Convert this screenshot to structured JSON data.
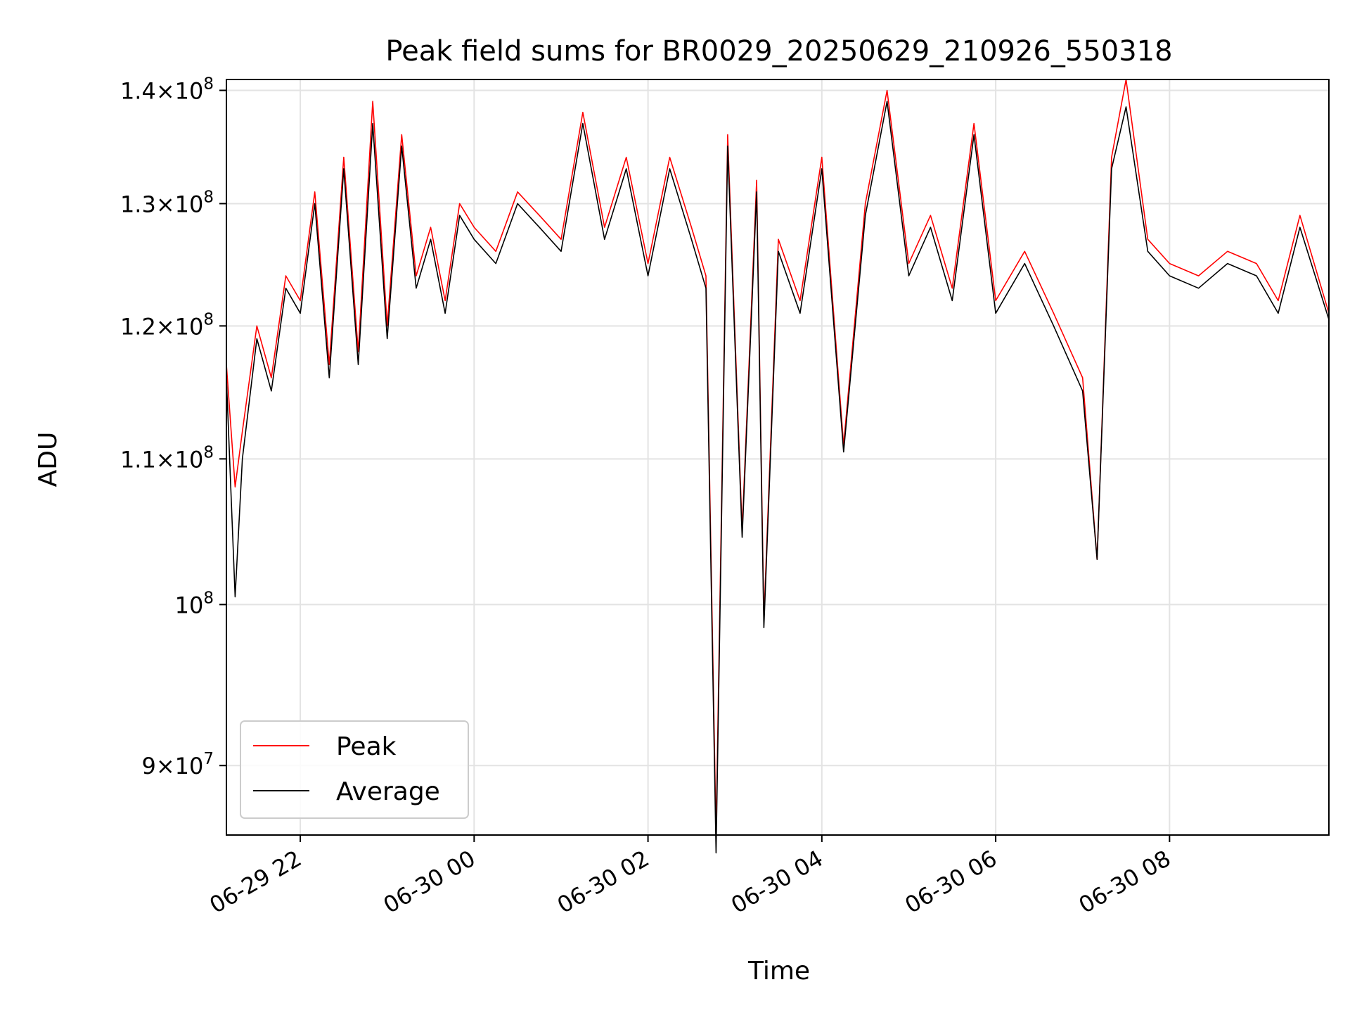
{
  "chart_data": {
    "type": "line",
    "title": "Peak field sums for BR0029_20250629_210926_550318",
    "xlabel": "Time",
    "ylabel": "ADU",
    "x_range": [
      "2025-06-29 21:09",
      "2025-06-30 09:50"
    ],
    "x_ticks": [
      {
        "value": "2025-06-29 22:00",
        "label": "06-29 22"
      },
      {
        "value": "2025-06-30 00:00",
        "label": "06-30 00"
      },
      {
        "value": "2025-06-30 02:00",
        "label": "06-30 02"
      },
      {
        "value": "2025-06-30 04:00",
        "label": "06-30 04"
      },
      {
        "value": "2025-06-30 06:00",
        "label": "06-30 06"
      },
      {
        "value": "2025-06-30 08:00",
        "label": "06-30 08"
      }
    ],
    "y_scale": "log",
    "ylim": [
      86000000,
      141000000
    ],
    "y_ticks": [
      {
        "value": 90000000,
        "mantissa": "9",
        "exponent": "7"
      },
      {
        "value": 100000000,
        "mantissa": "",
        "exponent": "8"
      },
      {
        "value": 110000000,
        "mantissa": "1.1",
        "exponent": "8"
      },
      {
        "value": 120000000,
        "mantissa": "1.2",
        "exponent": "8"
      },
      {
        "value": 130000000,
        "mantissa": "1.3",
        "exponent": "8"
      },
      {
        "value": 140000000,
        "mantissa": "1.4",
        "exponent": "8"
      }
    ],
    "grid": true,
    "legend_position": "lower-left",
    "series": [
      {
        "name": "Peak",
        "color": "#ff0000",
        "x": [
          "2025-06-29 21:09",
          "2025-06-29 21:15",
          "2025-06-29 21:20",
          "2025-06-29 21:30",
          "2025-06-29 21:40",
          "2025-06-29 21:50",
          "2025-06-29 22:00",
          "2025-06-29 22:10",
          "2025-06-29 22:20",
          "2025-06-29 22:30",
          "2025-06-29 22:40",
          "2025-06-29 22:50",
          "2025-06-29 23:00",
          "2025-06-29 23:10",
          "2025-06-29 23:20",
          "2025-06-29 23:30",
          "2025-06-29 23:40",
          "2025-06-29 23:50",
          "2025-06-30 00:00",
          "2025-06-30 00:15",
          "2025-06-30 00:30",
          "2025-06-30 00:45",
          "2025-06-30 01:00",
          "2025-06-30 01:15",
          "2025-06-30 01:30",
          "2025-06-30 01:45",
          "2025-06-30 02:00",
          "2025-06-30 02:15",
          "2025-06-30 02:30",
          "2025-06-30 02:40",
          "2025-06-30 02:47",
          "2025-06-30 02:55",
          "2025-06-30 03:05",
          "2025-06-30 03:15",
          "2025-06-30 03:20",
          "2025-06-30 03:30",
          "2025-06-30 03:45",
          "2025-06-30 04:00",
          "2025-06-30 04:15",
          "2025-06-30 04:30",
          "2025-06-30 04:45",
          "2025-06-30 05:00",
          "2025-06-30 05:15",
          "2025-06-30 05:30",
          "2025-06-30 05:45",
          "2025-06-30 06:00",
          "2025-06-30 06:20",
          "2025-06-30 06:40",
          "2025-06-30 07:00",
          "2025-06-30 07:10",
          "2025-06-30 07:20",
          "2025-06-30 07:30",
          "2025-06-30 07:45",
          "2025-06-30 08:00",
          "2025-06-30 08:20",
          "2025-06-30 08:40",
          "2025-06-30 09:00",
          "2025-06-30 09:15",
          "2025-06-30 09:30",
          "2025-06-30 09:50"
        ],
        "values": [
          117000000,
          108000000,
          112000000,
          120000000,
          116000000,
          124000000,
          122000000,
          131000000,
          117000000,
          134000000,
          118000000,
          139000000,
          120000000,
          136000000,
          124000000,
          128000000,
          122000000,
          130000000,
          128000000,
          126000000,
          131000000,
          129000000,
          127000000,
          138000000,
          128000000,
          134000000,
          125000000,
          134000000,
          128000000,
          124000000,
          86000000,
          136000000,
          105000000,
          132000000,
          99000000,
          127000000,
          122000000,
          134000000,
          111000000,
          130000000,
          140000000,
          125000000,
          129000000,
          123000000,
          137000000,
          122000000,
          126000000,
          121000000,
          116000000,
          103000000,
          134000000,
          141000000,
          127000000,
          125000000,
          124000000,
          126000000,
          125000000,
          122000000,
          129000000,
          121000000
        ]
      },
      {
        "name": "Average",
        "color": "#000000",
        "x": [
          "2025-06-29 21:09",
          "2025-06-29 21:15",
          "2025-06-29 21:20",
          "2025-06-29 21:30",
          "2025-06-29 21:40",
          "2025-06-29 21:50",
          "2025-06-29 22:00",
          "2025-06-29 22:10",
          "2025-06-29 22:20",
          "2025-06-29 22:30",
          "2025-06-29 22:40",
          "2025-06-29 22:50",
          "2025-06-29 23:00",
          "2025-06-29 23:10",
          "2025-06-29 23:20",
          "2025-06-29 23:30",
          "2025-06-29 23:40",
          "2025-06-29 23:50",
          "2025-06-30 00:00",
          "2025-06-30 00:15",
          "2025-06-30 00:30",
          "2025-06-30 00:45",
          "2025-06-30 01:00",
          "2025-06-30 01:15",
          "2025-06-30 01:30",
          "2025-06-30 01:45",
          "2025-06-30 02:00",
          "2025-06-30 02:15",
          "2025-06-30 02:30",
          "2025-06-30 02:40",
          "2025-06-30 02:47",
          "2025-06-30 02:55",
          "2025-06-30 03:05",
          "2025-06-30 03:15",
          "2025-06-30 03:20",
          "2025-06-30 03:30",
          "2025-06-30 03:45",
          "2025-06-30 04:00",
          "2025-06-30 04:15",
          "2025-06-30 04:30",
          "2025-06-30 04:45",
          "2025-06-30 05:00",
          "2025-06-30 05:15",
          "2025-06-30 05:30",
          "2025-06-30 05:45",
          "2025-06-30 06:00",
          "2025-06-30 06:20",
          "2025-06-30 06:40",
          "2025-06-30 07:00",
          "2025-06-30 07:10",
          "2025-06-30 07:20",
          "2025-06-30 07:30",
          "2025-06-30 07:45",
          "2025-06-30 08:00",
          "2025-06-30 08:20",
          "2025-06-30 08:40",
          "2025-06-30 09:00",
          "2025-06-30 09:15",
          "2025-06-30 09:30",
          "2025-06-30 09:50"
        ],
        "values": [
          116000000,
          100500000,
          110000000,
          119000000,
          115000000,
          123000000,
          121000000,
          130000000,
          116000000,
          133000000,
          117000000,
          137000000,
          119000000,
          135000000,
          123000000,
          127000000,
          121000000,
          129000000,
          127000000,
          125000000,
          130000000,
          128000000,
          126000000,
          137000000,
          127000000,
          133000000,
          124000000,
          133000000,
          127000000,
          123000000,
          85000000,
          135000000,
          104500000,
          131000000,
          98500000,
          126000000,
          121000000,
          133000000,
          110500000,
          129000000,
          139000000,
          124000000,
          128000000,
          122000000,
          136000000,
          121000000,
          125000000,
          120000000,
          115000000,
          103000000,
          133000000,
          138500000,
          126000000,
          124000000,
          123000000,
          125000000,
          124000000,
          121000000,
          128000000,
          120500000
        ]
      }
    ]
  }
}
